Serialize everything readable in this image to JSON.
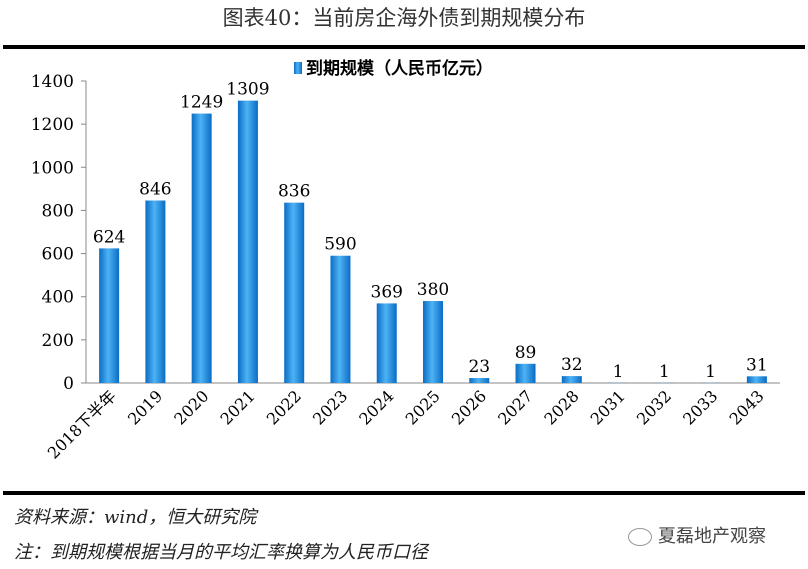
{
  "title": "图表40：当前房企海外债到期规模分布",
  "chart_data": {
    "type": "bar",
    "title": "图表40：当前房企海外债到期规模分布",
    "legend": "到期规模（人民币亿元）",
    "legend_position": "top-center",
    "categories": [
      "2018下半年",
      "2019",
      "2020",
      "2021",
      "2022",
      "2023",
      "2024",
      "2025",
      "2026",
      "2027",
      "2028",
      "2031",
      "2032",
      "2033",
      "2043"
    ],
    "values": [
      624,
      846,
      1249,
      1309,
      836,
      590,
      369,
      380,
      23,
      89,
      32,
      1,
      1,
      1,
      31
    ],
    "ylim": [
      0,
      1400
    ],
    "yticks": [
      0,
      200,
      400,
      600,
      800,
      1000,
      1200,
      1400
    ],
    "grid": false,
    "bar_color": "#1f8fe0"
  },
  "footer": {
    "source": "资料来源：wind，恒大研究院",
    "note": "注：到期规模根据当月的平均汇率换算为人民币口径",
    "watermark": "夏磊地产观察"
  }
}
